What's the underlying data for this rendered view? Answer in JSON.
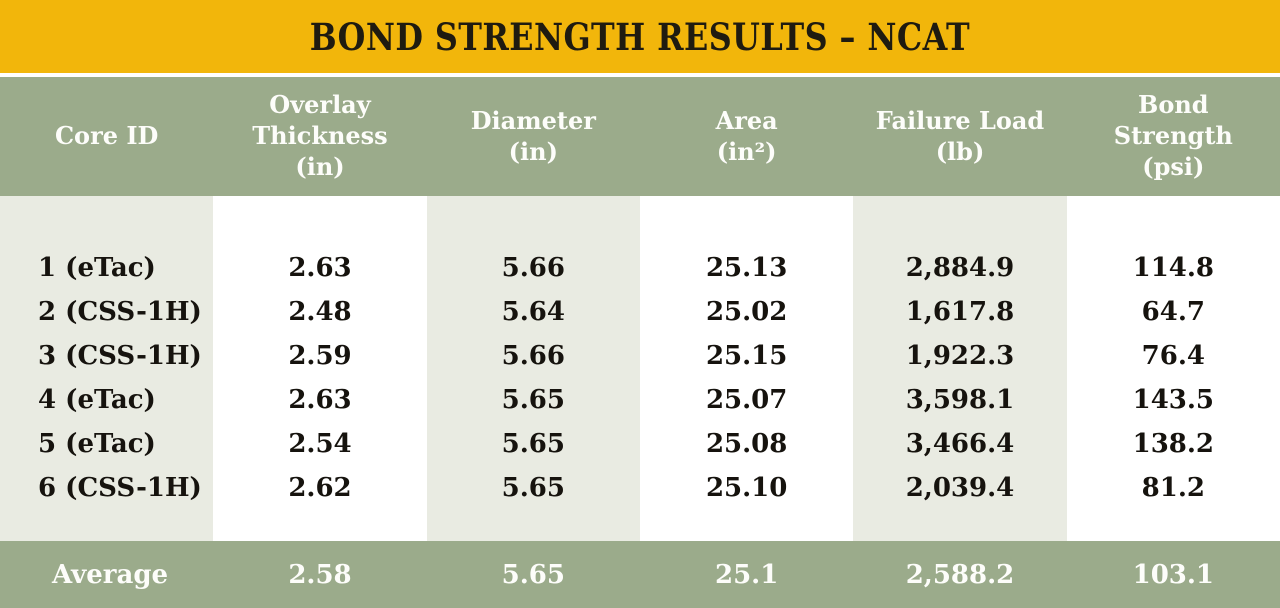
{
  "title": "BOND STRENGTH RESULTS – NCAT",
  "colors": {
    "title_bar_gold": "#F2B60B",
    "band_sage_green": "#9BAB8B",
    "shaded_column": "#E9EBE2",
    "title_text": "#1F1B10",
    "body_text": "#16130E",
    "band_text": "#FDFDFA"
  },
  "table": {
    "columns": [
      {
        "label": "Core ID"
      },
      {
        "label": "Overlay\nThickness\n(in)"
      },
      {
        "label": "Diameter\n(in)"
      },
      {
        "label": "Area\n(in²)"
      },
      {
        "label": "Failure Load\n(lb)"
      },
      {
        "label": "Bond\nStrength\n(psi)"
      }
    ],
    "rows": [
      [
        "1 (eTac)",
        "2.63",
        "5.66",
        "25.13",
        "2,884.9",
        "114.8"
      ],
      [
        "2 (CSS-1H)",
        "2.48",
        "5.64",
        "25.02",
        "1,617.8",
        "64.7"
      ],
      [
        "3 (CSS-1H)",
        "2.59",
        "5.66",
        "25.15",
        "1,922.3",
        "76.4"
      ],
      [
        "4 (eTac)",
        "2.63",
        "5.65",
        "25.07",
        "3,598.1",
        "143.5"
      ],
      [
        "5 (eTac)",
        "2.54",
        "5.65",
        "25.08",
        "3,466.4",
        "138.2"
      ],
      [
        "6 (CSS-1H)",
        "2.62",
        "5.65",
        "25.10",
        "2,039.4",
        "81.2"
      ]
    ],
    "average": [
      "Average",
      "2.58",
      "5.65",
      "25.1",
      "2,588.2",
      "103.1"
    ]
  },
  "chart_data": {
    "type": "table",
    "title": "BOND STRENGTH RESULTS – NCAT",
    "columns": [
      "Core ID",
      "Overlay Thickness (in)",
      "Diameter (in)",
      "Area (in²)",
      "Failure Load (lb)",
      "Bond Strength (psi)"
    ],
    "rows": [
      [
        "1 (eTac)",
        2.63,
        5.66,
        25.13,
        2884.9,
        114.8
      ],
      [
        "2 (CSS-1H)",
        2.48,
        5.64,
        25.02,
        1617.8,
        64.7
      ],
      [
        "3 (CSS-1H)",
        2.59,
        5.66,
        25.15,
        1922.3,
        76.4
      ],
      [
        "4 (eTac)",
        2.63,
        5.65,
        25.07,
        3598.1,
        143.5
      ],
      [
        "5 (eTac)",
        2.54,
        5.65,
        25.08,
        3466.4,
        138.2
      ],
      [
        "6 (CSS-1H)",
        2.62,
        5.65,
        25.1,
        2039.4,
        81.2
      ]
    ],
    "average": [
      "Average",
      2.58,
      5.65,
      25.1,
      2588.2,
      103.1
    ]
  }
}
